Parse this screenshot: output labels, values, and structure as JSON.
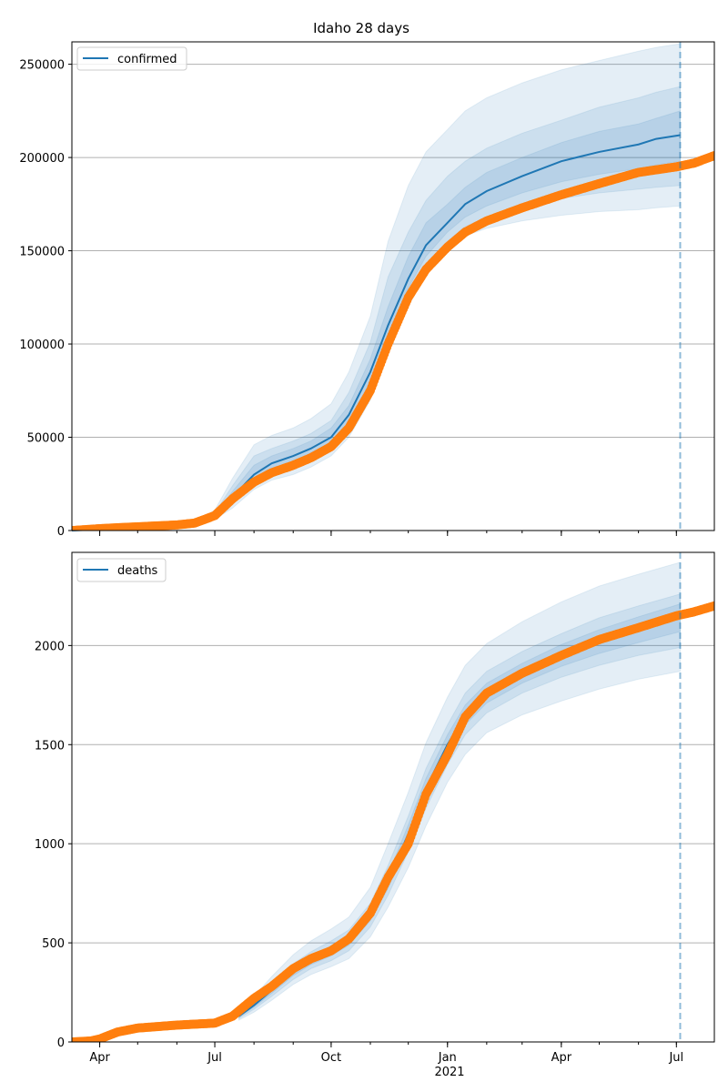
{
  "title": "Idaho 28 days",
  "colors": {
    "model_line": "#1f77b4",
    "observed": "#ff7f0e",
    "band": "#1f77b4",
    "forecast_line": "#1f77b4",
    "grid": "#b0b0b0"
  },
  "x_axis": {
    "range": [
      "2020-03-10",
      "2021-07-31"
    ],
    "ticks": [
      {
        "date": "2020-04-01",
        "label": "Apr"
      },
      {
        "date": "2020-07-01",
        "label": "Jul"
      },
      {
        "date": "2020-10-01",
        "label": "Oct"
      },
      {
        "date": "2021-01-01",
        "label": "Jan"
      },
      {
        "date": "2021-04-01",
        "label": "Apr"
      },
      {
        "date": "2021-07-01",
        "label": "Jul"
      }
    ],
    "year_label": "2021",
    "forecast_date": "2021-07-04"
  },
  "chart_data": [
    {
      "type": "line",
      "legend": "confirmed",
      "legend_position": "top-left",
      "grid": "horizontal",
      "ylim": [
        0,
        262000
      ],
      "yticks": [
        0,
        50000,
        100000,
        150000,
        200000,
        250000
      ],
      "ytick_labels": [
        "0",
        "50000",
        "100000",
        "150000",
        "200000",
        "250000"
      ],
      "model_series": {
        "name": "confirmed",
        "x": [
          "2020-03-10",
          "2020-05-01",
          "2020-06-01",
          "2020-06-20",
          "2020-07-01",
          "2020-07-15",
          "2020-08-01",
          "2020-08-15",
          "2020-09-01",
          "2020-09-15",
          "2020-10-01",
          "2020-10-15",
          "2020-11-01",
          "2020-11-15",
          "2020-12-01",
          "2020-12-15",
          "2021-01-01",
          "2021-01-15",
          "2021-02-01",
          "2021-03-01",
          "2021-04-01",
          "2021-05-01",
          "2021-06-01",
          "2021-06-15",
          "2021-07-04"
        ],
        "y": [
          0,
          1500,
          3000,
          4500,
          8000,
          18000,
          30000,
          36000,
          40000,
          44000,
          50000,
          62000,
          85000,
          110000,
          135000,
          153000,
          165000,
          175000,
          182000,
          190000,
          198000,
          203000,
          207000,
          210000,
          212000
        ],
        "bands": [
          {
            "level": "outer",
            "lower": [
              0,
              1000,
              2200,
              3000,
              6000,
              12000,
              22000,
              27000,
              30000,
              34000,
              40000,
              50000,
              70000,
              95000,
              120000,
              138000,
              150000,
              158000,
              162000,
              166000,
              169000,
              171000,
              172000,
              173000,
              174000
            ],
            "upper": [
              0,
              2000,
              4000,
              6500,
              11000,
              28000,
              46000,
              51000,
              55000,
              60000,
              68000,
              85000,
              115000,
              155000,
              185000,
              203000,
              215000,
              225000,
              232000,
              240000,
              247000,
              252000,
              257000,
              259000,
              261000
            ]
          },
          {
            "level": "middle",
            "lower": [
              0,
              1200,
              2500,
              3500,
              7000,
              14000,
              25000,
              30000,
              34000,
              38000,
              43000,
              54000,
              76000,
              101000,
              126000,
              143000,
              155000,
              163000,
              168000,
              174000,
              178000,
              181000,
              183000,
              184000,
              185000
            ],
            "upper": [
              0,
              1800,
              3600,
              5500,
              9500,
              24000,
              40000,
              44000,
              48000,
              52000,
              59000,
              74000,
              101000,
              136000,
              160000,
              177000,
              190000,
              198000,
              205000,
              213000,
              220000,
              227000,
              232000,
              235000,
              238000
            ]
          },
          {
            "level": "inner",
            "lower": [
              0,
              1300,
              2700,
              4000,
              7500,
              16000,
              27000,
              33000,
              37000,
              41000,
              46000,
              58000,
              80000,
              106000,
              130000,
              147000,
              160000,
              168000,
              174000,
              181000,
              187000,
              191000,
              194000,
              196000,
              198000
            ],
            "upper": [
              0,
              1700,
              3300,
              5000,
              8800,
              21000,
              35000,
              40000,
              44000,
              48000,
              55000,
              67000,
              92000,
              120000,
              147000,
              165000,
              175000,
              184000,
              192000,
              200000,
              208000,
              214000,
              218000,
              221000,
              225000
            ]
          }
        ]
      },
      "observed_series": {
        "name": "observed confirmed",
        "x": [
          "2020-03-10",
          "2020-04-01",
          "2020-04-15",
          "2020-05-01",
          "2020-06-01",
          "2020-06-15",
          "2020-07-01",
          "2020-07-15",
          "2020-08-01",
          "2020-08-15",
          "2020-09-01",
          "2020-09-15",
          "2020-10-01",
          "2020-10-15",
          "2020-11-01",
          "2020-11-15",
          "2020-12-01",
          "2020-12-15",
          "2021-01-01",
          "2021-01-15",
          "2021-02-01",
          "2021-03-01",
          "2021-04-01",
          "2021-05-01",
          "2021-06-01",
          "2021-07-01",
          "2021-07-15",
          "2021-07-31"
        ],
        "y": [
          0,
          1000,
          1500,
          2000,
          3000,
          4000,
          8000,
          17000,
          26000,
          31000,
          35000,
          39000,
          45000,
          55000,
          75000,
          100000,
          125000,
          140000,
          152000,
          160000,
          166000,
          173000,
          180000,
          186000,
          192000,
          195000,
          197000,
          201000
        ]
      }
    },
    {
      "type": "line",
      "legend": "deaths",
      "legend_position": "top-left",
      "grid": "horizontal",
      "ylim": [
        0,
        2470
      ],
      "yticks": [
        0,
        500,
        1000,
        1500,
        2000
      ],
      "ytick_labels": [
        "0",
        "500",
        "1000",
        "1500",
        "2000"
      ],
      "model_series": {
        "name": "deaths",
        "x": [
          "2020-07-20",
          "2020-08-01",
          "2020-08-15",
          "2020-09-01",
          "2020-09-15",
          "2020-10-01",
          "2020-10-15",
          "2020-11-01",
          "2020-11-15",
          "2020-12-01",
          "2020-12-15",
          "2021-01-01",
          "2021-01-15",
          "2021-02-01",
          "2021-03-01",
          "2021-04-01",
          "2021-05-01",
          "2021-06-01",
          "2021-07-04"
        ],
        "y": [
          130,
          185,
          260,
          350,
          410,
          460,
          515,
          640,
          810,
          1050,
          1280,
          1500,
          1650,
          1760,
          1860,
          1950,
          2020,
          2080,
          2140
        ],
        "bands": [
          {
            "level": "outer",
            "lower": [
              110,
              150,
              210,
              290,
              340,
              380,
              420,
              530,
              680,
              880,
              1090,
              1310,
              1450,
              1560,
              1650,
              1720,
              1780,
              1830,
              1870
            ],
            "upper": [
              150,
              230,
              330,
              440,
              510,
              570,
              630,
              780,
              1000,
              1260,
              1510,
              1740,
              1900,
              2010,
              2120,
              2220,
              2300,
              2360,
              2420
            ]
          },
          {
            "level": "middle",
            "lower": [
              118,
              165,
              230,
              315,
              370,
              410,
              460,
              580,
              740,
              960,
              1180,
              1400,
              1550,
              1660,
              1760,
              1840,
              1900,
              1950,
              1990
            ],
            "upper": [
              142,
              205,
              295,
              395,
              455,
              510,
              565,
              700,
              890,
              1140,
              1380,
              1600,
              1760,
              1870,
              1970,
              2060,
              2140,
              2200,
              2260
            ]
          },
          {
            "level": "inner",
            "lower": [
              124,
              175,
              245,
              335,
              390,
              435,
              488,
              612,
              775,
              1005,
              1230,
              1450,
              1600,
              1710,
              1810,
              1895,
              1960,
              2015,
              2070
            ],
            "upper": [
              136,
              195,
              275,
              370,
              430,
              485,
              540,
              670,
              845,
              1095,
              1330,
              1550,
              1700,
              1810,
              1910,
              2005,
              2080,
              2145,
              2210
            ]
          }
        ]
      },
      "observed_series": {
        "name": "observed deaths",
        "x": [
          "2020-03-10",
          "2020-03-25",
          "2020-04-01",
          "2020-04-15",
          "2020-05-01",
          "2020-06-01",
          "2020-07-01",
          "2020-07-15",
          "2020-08-01",
          "2020-08-15",
          "2020-09-01",
          "2020-09-15",
          "2020-10-01",
          "2020-10-15",
          "2020-11-01",
          "2020-11-15",
          "2020-12-01",
          "2020-12-15",
          "2021-01-01",
          "2021-01-15",
          "2021-02-01",
          "2021-03-01",
          "2021-04-01",
          "2021-05-01",
          "2021-06-01",
          "2021-07-01",
          "2021-07-15",
          "2021-07-31"
        ],
        "y": [
          0,
          5,
          15,
          50,
          70,
          85,
          95,
          130,
          220,
          280,
          370,
          420,
          460,
          520,
          650,
          830,
          1000,
          1250,
          1450,
          1640,
          1760,
          1860,
          1950,
          2030,
          2090,
          2150,
          2170,
          2200
        ]
      }
    }
  ]
}
